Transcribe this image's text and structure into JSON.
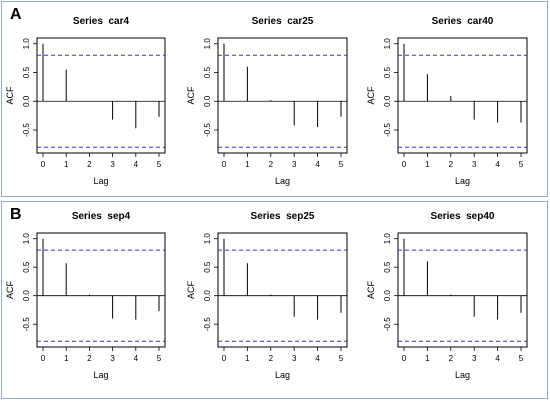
{
  "panels": [
    {
      "label": "A"
    },
    {
      "label": "B"
    }
  ],
  "colors": {
    "confidence_band": "#3333cc",
    "spike": "#000000",
    "border": "#8eaadb"
  },
  "chart_data": [
    {
      "type": "bar",
      "panel": "A",
      "title": "Series  car4",
      "xlabel": "Lag",
      "ylabel": "ACF",
      "x": [
        0,
        1,
        2,
        3,
        4,
        5
      ],
      "values": [
        1.0,
        0.55,
        0.0,
        -0.32,
        -0.47,
        -0.27
      ],
      "ci": 0.8,
      "xlim": [
        0,
        5
      ],
      "ylim": [
        -0.9,
        1.1
      ],
      "xticks": [
        "0",
        "1",
        "2",
        "3",
        "4",
        "5"
      ],
      "yticks": [
        "-0.5",
        "0.0",
        "0.5",
        "1.0"
      ]
    },
    {
      "type": "bar",
      "panel": "A",
      "title": "Series  car25",
      "xlabel": "Lag",
      "ylabel": "ACF",
      "x": [
        0,
        1,
        2,
        3,
        4,
        5
      ],
      "values": [
        1.0,
        0.6,
        0.02,
        -0.42,
        -0.45,
        -0.27
      ],
      "ci": 0.8,
      "xlim": [
        0,
        5
      ],
      "ylim": [
        -0.9,
        1.1
      ],
      "xticks": [
        "0",
        "1",
        "2",
        "3",
        "4",
        "5"
      ],
      "yticks": [
        "-0.5",
        "0.0",
        "0.5",
        "1.0"
      ]
    },
    {
      "type": "bar",
      "panel": "A",
      "title": "Series  car40",
      "xlabel": "Lag",
      "ylabel": "ACF",
      "x": [
        0,
        1,
        2,
        3,
        4,
        5
      ],
      "values": [
        1.0,
        0.47,
        0.09,
        -0.32,
        -0.37,
        -0.37
      ],
      "ci": 0.8,
      "xlim": [
        0,
        5
      ],
      "ylim": [
        -0.9,
        1.1
      ],
      "xticks": [
        "0",
        "1",
        "2",
        "3",
        "4",
        "5"
      ],
      "yticks": [
        "-0.5",
        "0.0",
        "0.5",
        "1.0"
      ]
    },
    {
      "type": "bar",
      "panel": "B",
      "title": "Series  sep4",
      "xlabel": "Lag",
      "ylabel": "ACF",
      "x": [
        0,
        1,
        2,
        3,
        4,
        5
      ],
      "values": [
        1.0,
        0.57,
        0.02,
        -0.4,
        -0.42,
        -0.27
      ],
      "ci": 0.8,
      "xlim": [
        0,
        5
      ],
      "ylim": [
        -0.9,
        1.1
      ],
      "xticks": [
        "0",
        "1",
        "2",
        "3",
        "4",
        "5"
      ],
      "yticks": [
        "-0.5",
        "0.0",
        "0.5",
        "1.0"
      ]
    },
    {
      "type": "bar",
      "panel": "B",
      "title": "Series  sep25",
      "xlabel": "Lag",
      "ylabel": "ACF",
      "x": [
        0,
        1,
        2,
        3,
        4,
        5
      ],
      "values": [
        1.0,
        0.57,
        0.02,
        -0.37,
        -0.42,
        -0.3
      ],
      "ci": 0.8,
      "xlim": [
        0,
        5
      ],
      "ylim": [
        -0.9,
        1.1
      ],
      "xticks": [
        "0",
        "1",
        "2",
        "3",
        "4",
        "5"
      ],
      "yticks": [
        "-0.5",
        "0.0",
        "0.5",
        "1.0"
      ]
    },
    {
      "type": "bar",
      "panel": "B",
      "title": "Series  sep40",
      "xlabel": "Lag",
      "ylabel": "ACF",
      "x": [
        0,
        1,
        2,
        3,
        4,
        5
      ],
      "values": [
        1.0,
        0.6,
        0.02,
        -0.37,
        -0.42,
        -0.3
      ],
      "ci": 0.8,
      "xlim": [
        0,
        5
      ],
      "ylim": [
        -0.9,
        1.1
      ],
      "xticks": [
        "0",
        "1",
        "2",
        "3",
        "4",
        "5"
      ],
      "yticks": [
        "-0.5",
        "0.0",
        "0.5",
        "1.0"
      ]
    }
  ]
}
